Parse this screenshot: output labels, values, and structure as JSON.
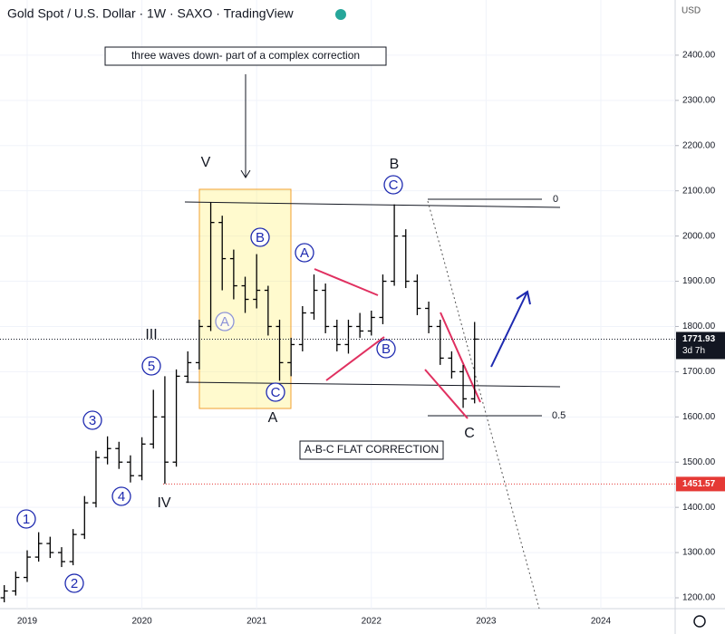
{
  "chart_data": {
    "type": "ohlc",
    "title": "Gold Spot / U.S. Dollar · 1W · SAXO · TradingView",
    "currency": "USD",
    "color": "#000000",
    "xlim": [
      2018.763,
      2024.648
    ],
    "ylim": [
      1176,
      2522
    ],
    "xticks": [
      2019,
      2020,
      2021,
      2022,
      2023,
      2024
    ],
    "yticks": [
      {
        "value": 1200,
        "label": "1200.00"
      },
      {
        "value": 1300,
        "label": "1300.00"
      },
      {
        "value": 1400,
        "label": "1400.00"
      },
      {
        "value": 1500,
        "label": "1500.00"
      },
      {
        "value": 1600,
        "label": "1600.00"
      },
      {
        "value": 1700,
        "label": "1700.00"
      },
      {
        "value": 1800,
        "label": "1800.00"
      },
      {
        "value": 1900,
        "label": "1900.00"
      },
      {
        "value": 2000,
        "label": "2000.00"
      },
      {
        "value": 2100,
        "label": "2100.00"
      },
      {
        "value": 2200,
        "label": "2200.00"
      },
      {
        "value": 2300,
        "label": "2300.00"
      },
      {
        "value": 2400,
        "label": "2400.00"
      }
    ],
    "x": [
      2018.8,
      2018.9,
      2019.0,
      2019.1,
      2019.2,
      2019.3,
      2019.4,
      2019.5,
      2019.6,
      2019.7,
      2019.8,
      2019.9,
      2020.0,
      2020.1,
      2020.2,
      2020.3,
      2020.4,
      2020.5,
      2020.6,
      2020.7,
      2020.8,
      2020.9,
      2021.0,
      2021.1,
      2021.2,
      2021.3,
      2021.4,
      2021.5,
      2021.6,
      2021.7,
      2021.8,
      2021.9,
      2022.0,
      2022.1,
      2022.2,
      2022.3,
      2022.4,
      2022.5,
      2022.6,
      2022.7,
      2022.8,
      2022.9
    ],
    "open": [
      1200,
      1215,
      1245,
      1290,
      1320,
      1300,
      1280,
      1340,
      1410,
      1510,
      1530,
      1500,
      1470,
      1540,
      1600,
      1500,
      1690,
      1720,
      1800,
      2030,
      1950,
      1890,
      1860,
      1880,
      1800,
      1720,
      1760,
      1830,
      1880,
      1800,
      1760,
      1800,
      1790,
      1820,
      1900,
      2000,
      1900,
      1840,
      1800,
      1730,
      1700,
      1640
    ],
    "high": [
      1228,
      1258,
      1305,
      1345,
      1335,
      1312,
      1352,
      1425,
      1525,
      1557,
      1545,
      1515,
      1555,
      1660,
      1690,
      1705,
      1745,
      1815,
      2075,
      2045,
      1970,
      1910,
      1960,
      1890,
      1815,
      1775,
      1845,
      1915,
      1895,
      1815,
      1815,
      1830,
      1835,
      1915,
      2070,
      2015,
      1915,
      1855,
      1815,
      1745,
      1715,
      1810
    ],
    "low": [
      1190,
      1205,
      1235,
      1280,
      1288,
      1268,
      1272,
      1330,
      1400,
      1495,
      1485,
      1455,
      1460,
      1530,
      1452,
      1490,
      1675,
      1705,
      1790,
      1880,
      1860,
      1830,
      1840,
      1780,
      1680,
      1690,
      1745,
      1815,
      1785,
      1745,
      1740,
      1775,
      1780,
      1805,
      1890,
      1885,
      1825,
      1785,
      1715,
      1685,
      1620,
      1630
    ],
    "close": [
      1215,
      1245,
      1290,
      1320,
      1300,
      1280,
      1340,
      1410,
      1510,
      1530,
      1500,
      1470,
      1540,
      1600,
      1500,
      1690,
      1720,
      1800,
      2030,
      1950,
      1890,
      1860,
      1880,
      1800,
      1720,
      1760,
      1830,
      1880,
      1800,
      1760,
      1800,
      1790,
      1820,
      1900,
      2000,
      1900,
      1840,
      1800,
      1730,
      1700,
      1640,
      1772
    ],
    "price_labels": [
      {
        "value": 1771.93,
        "label": "1771.93",
        "note": "3d 7h",
        "color": "#131722"
      },
      {
        "value": 1451.57,
        "label": "1451.57",
        "color": "#e53935"
      }
    ],
    "annotations": {
      "note": "three waves down- part of a complex correction",
      "flat": "A-B-C FLAT CORRECTION",
      "fib": [
        "0",
        "0.5"
      ],
      "waves": [
        "V",
        "III",
        "IV",
        "A",
        "B",
        "C"
      ],
      "circles": [
        "1",
        "2",
        "3",
        "4",
        "5",
        "A",
        "B",
        "C",
        "A",
        "B",
        "C"
      ]
    }
  }
}
